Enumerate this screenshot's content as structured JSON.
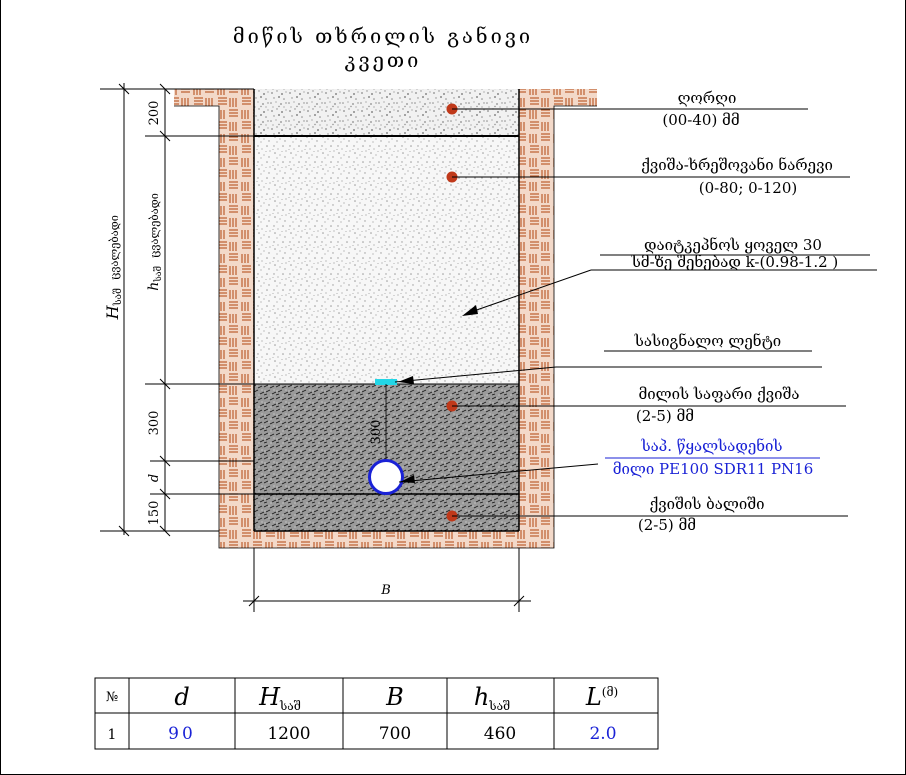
{
  "title": {
    "line1": "მიწის თხრილის განივი",
    "line2": "კვეთი"
  },
  "layers": {
    "top": {
      "name": "ღორღი",
      "spec": "(00-40) მმ"
    },
    "fill": {
      "name": "ქვიშა-ხრეშოვანი ნარევი",
      "spec": "(0-80; 0-120)"
    },
    "compaction": {
      "line1": "დაიტკეპნოს ყოველ 30",
      "line2": "სმ-ზე შენებად k-(0.98-1.2 )"
    },
    "tape": {
      "name": "სასიგნალო ლენტი"
    },
    "sand": {
      "name": "მილის საფარი ქვიშა",
      "spec": "(2-5) მმ"
    },
    "pipe": {
      "line1": "საპ. წყალსადენის",
      "line2": "მილი PE100 SDR11 PN16"
    },
    "bed": {
      "name": "ქვიშის ბალიში",
      "spec": "(2-5) მმ"
    }
  },
  "dimensions": {
    "top_layer": "200",
    "sand_layer": "300",
    "bed_layer": "150",
    "d": "d",
    "h_label": "h",
    "h_sub": "საშ",
    "h_text": "ცვალებადი",
    "H_label": "H",
    "H_sub": "საშ",
    "H_text": "ცვალებადი",
    "B": "B",
    "inner": "300"
  },
  "table": {
    "headers": [
      {
        "main": "№",
        "sub": ""
      },
      {
        "main": "d",
        "sub": ""
      },
      {
        "main": "H",
        "sub": "საშ"
      },
      {
        "main": "B",
        "sub": ""
      },
      {
        "main": "h",
        "sub": "საშ"
      },
      {
        "main": "L",
        "sub": "(მ)"
      }
    ],
    "rows": [
      [
        "1",
        "90",
        "1200",
        "700",
        "460",
        "2.0"
      ]
    ]
  },
  "colors": {
    "brick": "#c0673a",
    "pipe": "#1a22d6",
    "dot": "#c0391a",
    "tape": "#22d6e6"
  }
}
